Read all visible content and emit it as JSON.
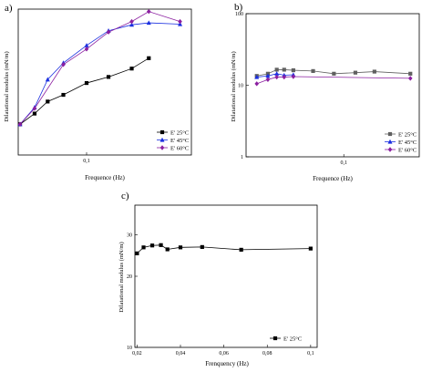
{
  "panels": [
    {
      "id": "a",
      "label": "a)",
      "xlabel": "Frequence (Hz)",
      "ylabel": "Dilatational modulus (mN/m)",
      "xscale": "log",
      "yscale": "log",
      "xlim": [
        0.035,
        0.5
      ],
      "ylim": [
        15,
        32
      ],
      "xticks": [
        {
          "v": 0.1,
          "t": "0,1"
        }
      ],
      "yticks": [],
      "legend": [
        {
          "name": "E' 25°C",
          "color": "#000000",
          "marker": "square"
        },
        {
          "name": "E' 45°C",
          "color": "#1a2fe0",
          "marker": "triangle"
        },
        {
          "name": "E' 60°C",
          "color": "#8b1fa0",
          "marker": "diamond"
        }
      ]
    },
    {
      "id": "b",
      "label": "b)",
      "xlabel": "Frequence (Hz)",
      "ylabel": "Dilatational modulus (mN/m)",
      "xscale": "log",
      "yscale": "log",
      "xlim": [
        0.011,
        0.55
      ],
      "ylim": [
        1,
        100
      ],
      "xticks": [
        {
          "v": 0.1,
          "t": "0,1"
        }
      ],
      "yticks": [
        {
          "v": 1,
          "t": "1"
        },
        {
          "v": 10,
          "t": "10"
        },
        {
          "v": 100,
          "t": "100"
        }
      ],
      "legend": [
        {
          "name": "E' 25°C",
          "color": "#606060",
          "marker": "square"
        },
        {
          "name": "E' 45°C",
          "color": "#1a2fe0",
          "marker": "triangle"
        },
        {
          "name": "E' 60°C",
          "color": "#8b1fa0",
          "marker": "diamond"
        }
      ]
    },
    {
      "id": "c",
      "label": "c)",
      "xlabel": "Frenquency (Hz)",
      "ylabel": "Dilatational modulus (mN/m)",
      "xscale": "linear",
      "yscale": "log",
      "xlim": [
        0.019,
        0.103
      ],
      "ylim": [
        10,
        40
      ],
      "xticks": [
        {
          "v": 0.02,
          "t": "0,02"
        },
        {
          "v": 0.04,
          "t": "0,04"
        },
        {
          "v": 0.06,
          "t": "0,06"
        },
        {
          "v": 0.08,
          "t": "0,08"
        },
        {
          "v": 0.1,
          "t": "0,1"
        }
      ],
      "yticks": [
        {
          "v": 10,
          "t": "10"
        },
        {
          "v": 20,
          "t": "20"
        },
        {
          "v": 30,
          "t": "30"
        }
      ],
      "legend": [
        {
          "name": "E'  25°C",
          "color": "#000000",
          "marker": "square"
        }
      ]
    }
  ],
  "chart_data": [
    {
      "type": "line",
      "title": "a)",
      "xlabel": "Frequence (Hz)",
      "ylabel": "Dilatational modulus (mN/m)",
      "xscale": "log",
      "yscale": "log",
      "series": [
        {
          "name": "E' 25°C",
          "x": [
            0.036,
            0.045,
            0.055,
            0.07,
            0.1,
            0.14,
            0.2,
            0.26
          ],
          "y": [
            17.6,
            18.6,
            19.8,
            20.5,
            21.8,
            22.5,
            23.5,
            24.8
          ]
        },
        {
          "name": "E' 45°C",
          "x": [
            0.036,
            0.045,
            0.055,
            0.07,
            0.1,
            0.14,
            0.2,
            0.26,
            0.42
          ],
          "y": [
            17.6,
            19.2,
            22.2,
            24.2,
            26.5,
            28.6,
            29.5,
            29.8,
            29.6
          ]
        },
        {
          "name": "E' 60°C",
          "x": [
            0.036,
            0.045,
            0.07,
            0.1,
            0.14,
            0.2,
            0.26,
            0.42
          ],
          "y": [
            17.6,
            19.1,
            24.0,
            26.0,
            28.4,
            30.0,
            31.6,
            30.0
          ]
        }
      ]
    },
    {
      "type": "line",
      "title": "b)",
      "xlabel": "Frequence (Hz)",
      "ylabel": "Dilatational modulus (mN/m)",
      "xscale": "log",
      "yscale": "log",
      "ylim": [
        1,
        100
      ],
      "series": [
        {
          "name": "E' 25°C",
          "x": [
            0.014,
            0.018,
            0.022,
            0.026,
            0.032,
            0.05,
            0.08,
            0.13,
            0.2,
            0.45
          ],
          "y": [
            13.5,
            14.5,
            16.5,
            16.5,
            16.2,
            15.8,
            14.5,
            15,
            15.5,
            14.5
          ]
        },
        {
          "name": "E' 45°C",
          "x": [
            0.014,
            0.018,
            0.022,
            0.026,
            0.032
          ],
          "y": [
            13,
            13.5,
            14.5,
            13.8,
            14
          ]
        },
        {
          "name": "E' 60°C",
          "x": [
            0.014,
            0.018,
            0.022,
            0.026,
            0.032,
            0.45
          ],
          "y": [
            10.5,
            12,
            13,
            13,
            13.2,
            12.5
          ]
        }
      ]
    },
    {
      "type": "line",
      "title": "c)",
      "xlabel": "Frenquency (Hz)",
      "ylabel": "Dilatational modulus (mN/m)",
      "yscale": "log",
      "ylim": [
        10,
        40
      ],
      "series": [
        {
          "name": "E'  25°C",
          "x": [
            0.02,
            0.023,
            0.027,
            0.031,
            0.034,
            0.04,
            0.05,
            0.068,
            0.1
          ],
          "y": [
            25,
            26.5,
            27,
            27.1,
            26,
            26.5,
            26.6,
            25.9,
            26.2
          ]
        }
      ]
    }
  ]
}
